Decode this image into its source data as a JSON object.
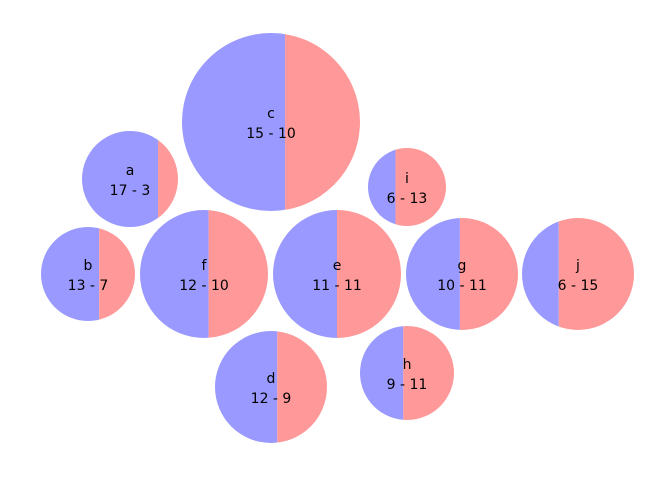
{
  "chart_data": {
    "type": "packed-bubble-split",
    "colors": {
      "left": "#9999ff",
      "right": "#ff9999"
    },
    "nodes": [
      {
        "name": "c",
        "left": 15,
        "right": 10
      },
      {
        "name": "a",
        "left": 17,
        "right": 3
      },
      {
        "name": "i",
        "left": 6,
        "right": 13
      },
      {
        "name": "b",
        "left": 13,
        "right": 7
      },
      {
        "name": "f",
        "left": 12,
        "right": 10
      },
      {
        "name": "e",
        "left": 11,
        "right": 11
      },
      {
        "name": "g",
        "left": 10,
        "right": 11
      },
      {
        "name": "j",
        "left": 6,
        "right": 15
      },
      {
        "name": "d",
        "left": 12,
        "right": 9
      },
      {
        "name": "h",
        "left": 9,
        "right": 11
      }
    ]
  }
}
